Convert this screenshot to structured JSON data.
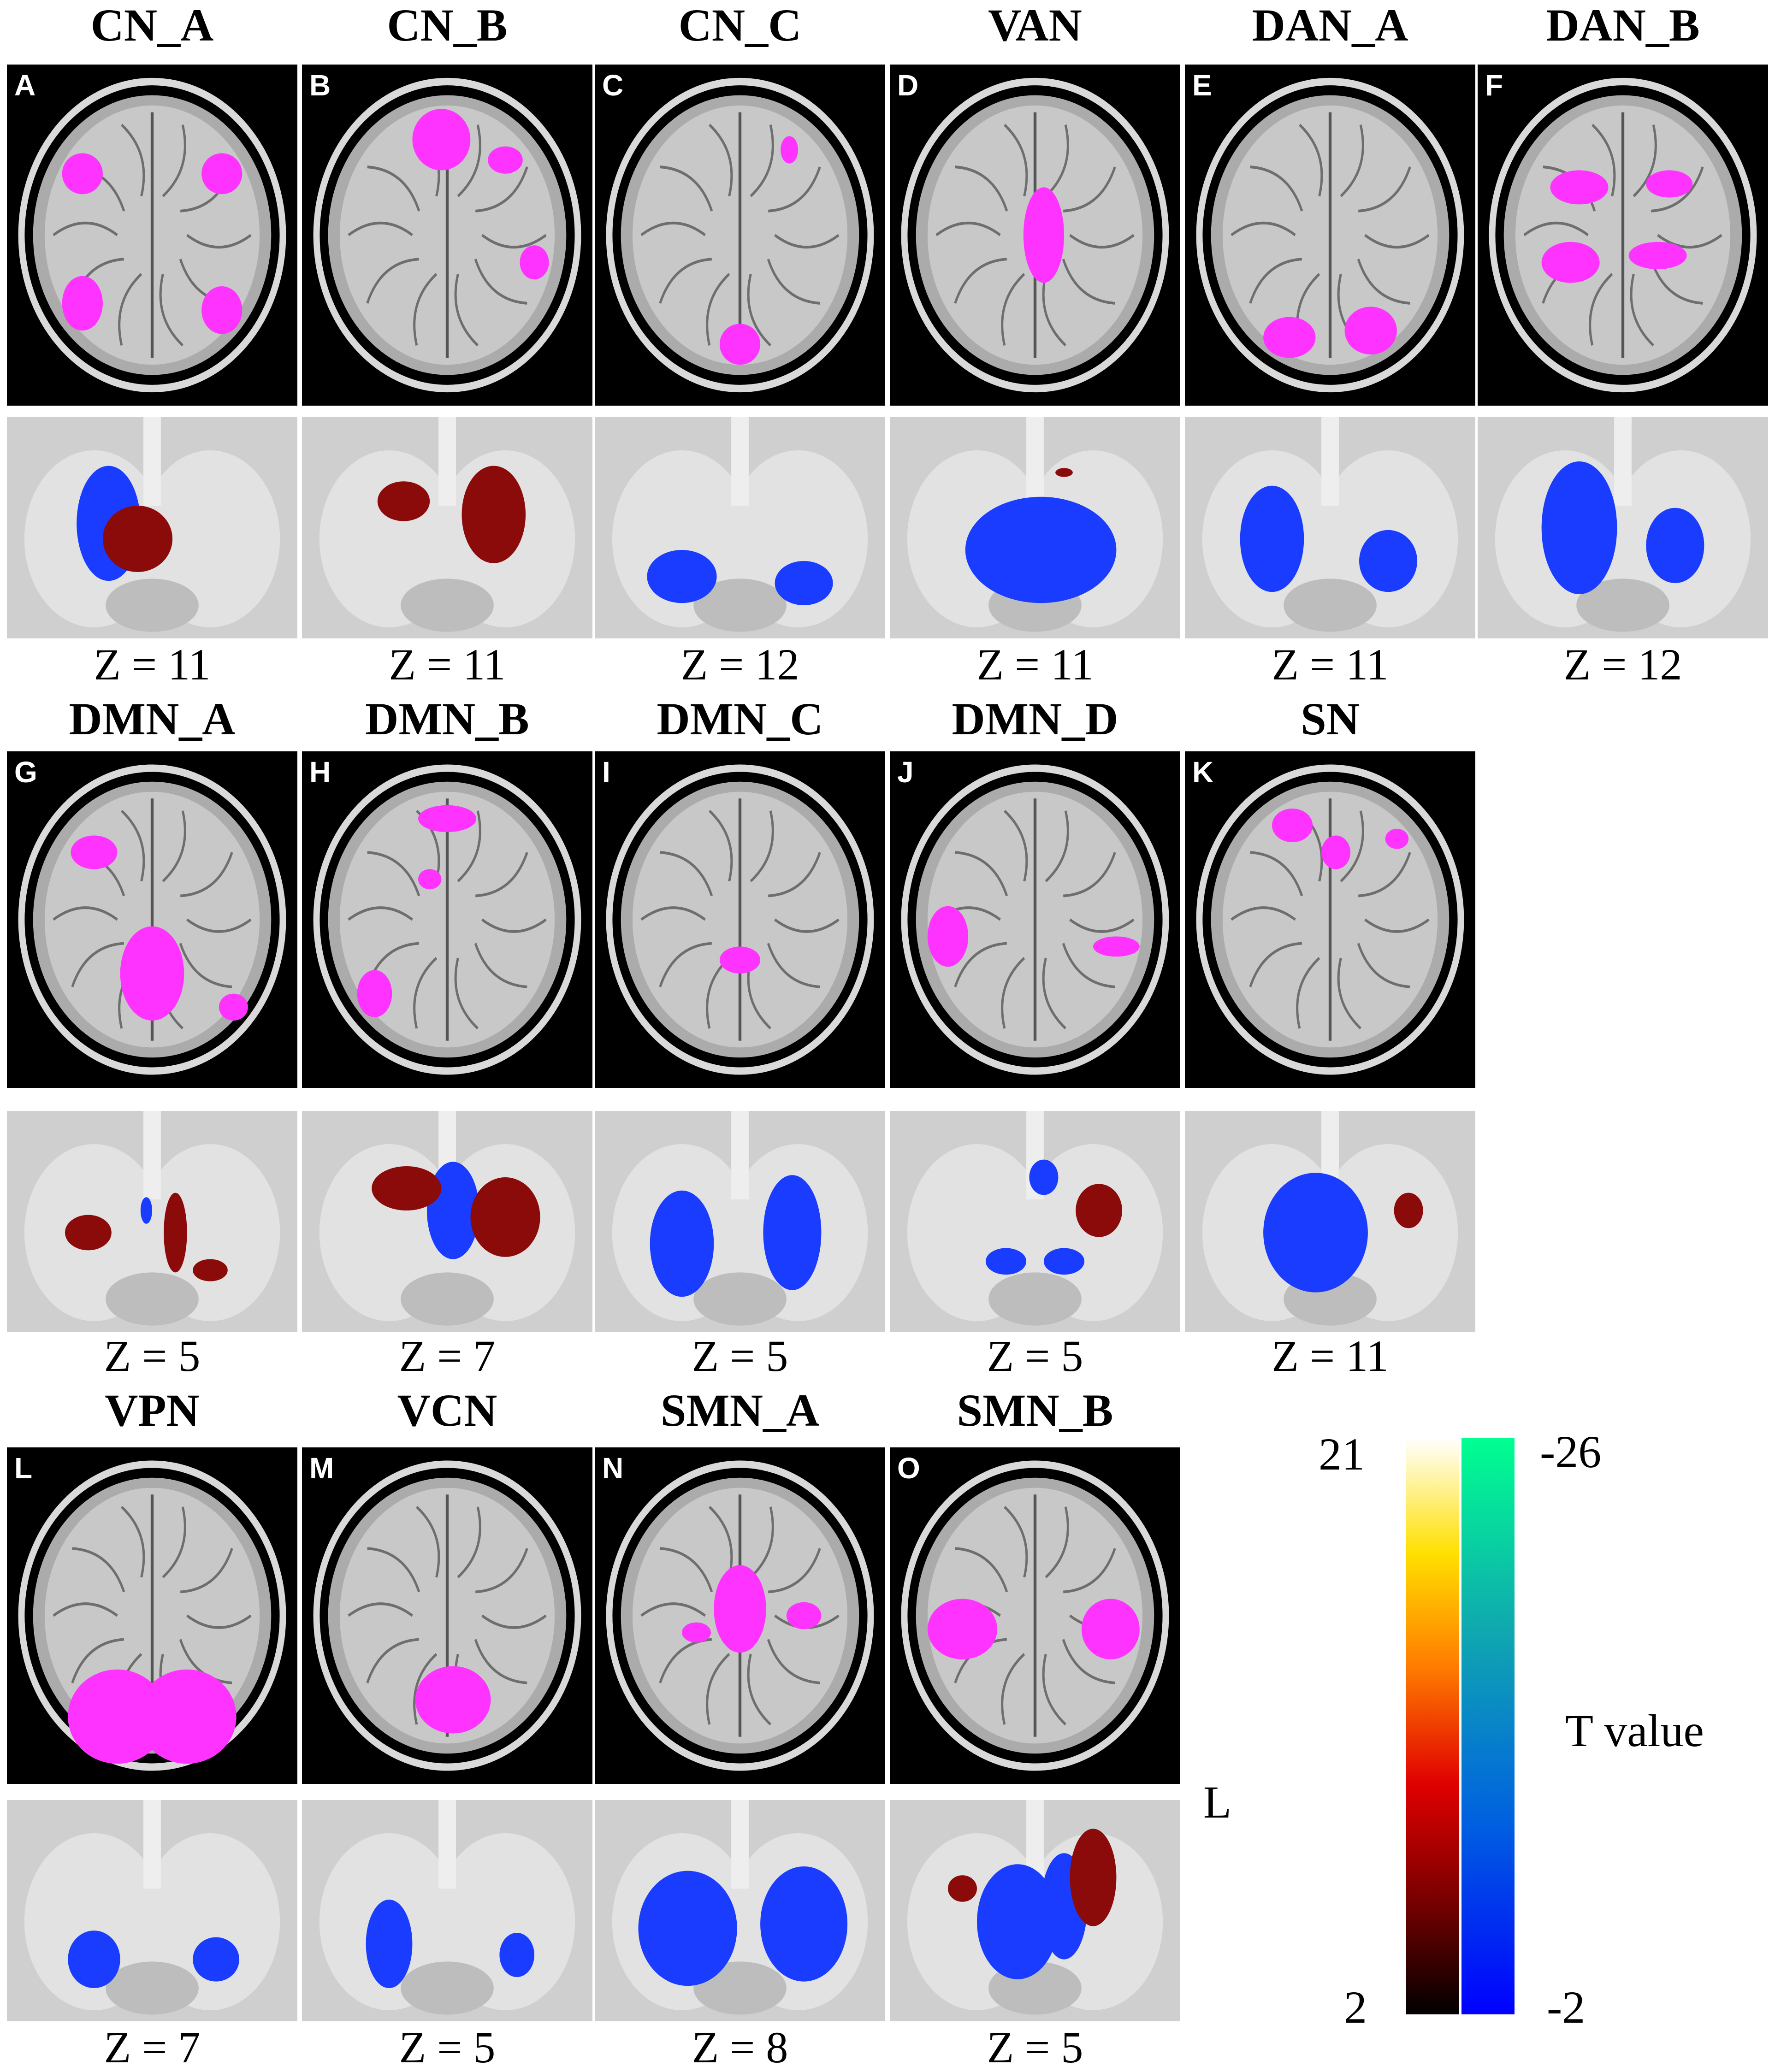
{
  "panels": [
    {
      "letter": "A",
      "network": "CN_A",
      "z": "Z = 11"
    },
    {
      "letter": "B",
      "network": "CN_B",
      "z": "Z = 11"
    },
    {
      "letter": "C",
      "network": "CN_C",
      "z": "Z = 12"
    },
    {
      "letter": "D",
      "network": "VAN",
      "z": "Z = 11"
    },
    {
      "letter": "E",
      "network": "DAN_A",
      "z": "Z = 11"
    },
    {
      "letter": "F",
      "network": "DAN_B",
      "z": "Z = 12"
    },
    {
      "letter": "G",
      "network": "DMN_A",
      "z": "Z = 5"
    },
    {
      "letter": "H",
      "network": "DMN_B",
      "z": "Z = 7"
    },
    {
      "letter": "I",
      "network": "DMN_C",
      "z": "Z = 5"
    },
    {
      "letter": "J",
      "network": "DMN_D",
      "z": "Z = 5"
    },
    {
      "letter": "K",
      "network": "SN",
      "z": "Z = 11"
    },
    {
      "letter": "L",
      "network": "VPN",
      "z": "Z = 7"
    },
    {
      "letter": "M",
      "network": "VCN",
      "z": "Z = 5"
    },
    {
      "letter": "N",
      "network": "SMN_A",
      "z": "Z = 8"
    },
    {
      "letter": "O",
      "network": "SMN_B",
      "z": "Z = 5"
    }
  ],
  "colorbar": {
    "positive_max": "21",
    "positive_min": "2",
    "negative_max": "-26",
    "negative_min": "-2",
    "label": "T value",
    "positive_colors": [
      "#000000",
      "#7a0000",
      "#e00000",
      "#ff7a00",
      "#ffe000",
      "#ffffff"
    ],
    "negative_colors": [
      "#0000ff",
      "#0060e0",
      "#10a8b0",
      "#00ff90"
    ]
  },
  "orientation_label": "L",
  "colors": {
    "network_overlay": "#ff33ff",
    "positive_cluster": "#8b0a0a",
    "negative_cluster": "#1a3cff",
    "panel_background": "#000000"
  }
}
